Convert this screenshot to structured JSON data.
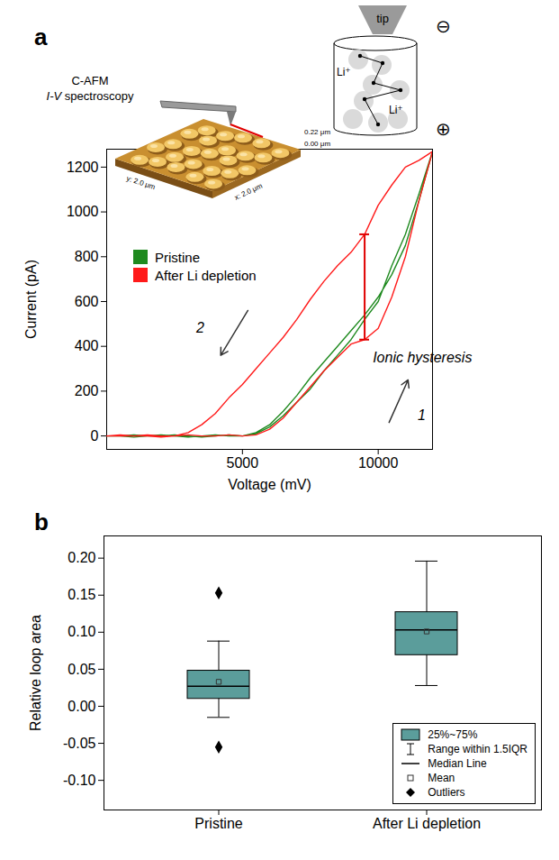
{
  "chart_data": [
    {
      "type": "line",
      "panel": "a",
      "x_label": "Voltage (mV)",
      "y_label": "Current (pA)",
      "xlim": [
        0,
        12000
      ],
      "xticks": [
        5000,
        10000
      ],
      "ylim": [
        -60,
        1280
      ],
      "yticks": [
        0,
        200,
        400,
        600,
        800,
        1000,
        1200
      ],
      "grid": false,
      "legend": "middle-left",
      "x": [
        0,
        500,
        1000,
        1500,
        2000,
        2500,
        3000,
        3500,
        4000,
        4500,
        5000,
        5500,
        6000,
        6500,
        7000,
        7500,
        8000,
        8500,
        9000,
        9500,
        10000,
        10500,
        11000,
        11500,
        12000,
        11500,
        11000,
        10500,
        10000,
        9500,
        9000,
        8500,
        8000,
        7500,
        7000,
        6500,
        6000,
        5500,
        5000,
        4500,
        4000,
        3500,
        3000,
        2500,
        2000,
        1500,
        1000,
        500,
        0
      ],
      "series": [
        {
          "name": "Pristine",
          "color": "#1f8a1f",
          "values": [
            0,
            0,
            -5,
            0,
            5,
            0,
            -5,
            0,
            5,
            0,
            0,
            10,
            40,
            90,
            150,
            210,
            290,
            360,
            430,
            520,
            600,
            760,
            900,
            1080,
            1270,
            1050,
            850,
            720,
            620,
            540,
            470,
            400,
            330,
            260,
            180,
            110,
            50,
            15,
            0,
            5,
            0,
            -5,
            0,
            5,
            0,
            0,
            5,
            0,
            0
          ]
        },
        {
          "name": "After Li depletion",
          "color": "#ff1a1a",
          "values": [
            0,
            5,
            0,
            0,
            -5,
            0,
            5,
            0,
            0,
            5,
            0,
            5,
            30,
            80,
            150,
            220,
            290,
            350,
            410,
            430,
            480,
            620,
            800,
            1050,
            1270,
            1230,
            1200,
            1120,
            1030,
            900,
            820,
            760,
            690,
            610,
            520,
            440,
            370,
            300,
            230,
            170,
            100,
            50,
            15,
            0,
            0,
            5,
            0,
            0,
            0
          ]
        }
      ],
      "annotations": [
        {
          "text": "Ionic hysteresis",
          "x": 9800,
          "y": 350,
          "bar": {
            "x": 9500,
            "y1": 430,
            "y2": 900
          }
        },
        {
          "text": "1",
          "x": 11450,
          "y": 90,
          "arrow": {
            "x1": 10400,
            "y1": 60,
            "x2": 11100,
            "y2": 250
          }
        },
        {
          "text": "2",
          "x": 3300,
          "y": 480,
          "arrow": {
            "x1": 5200,
            "y1": 560,
            "x2": 4200,
            "y2": 360
          }
        }
      ],
      "insets": {
        "afm": {
          "title": "C-AFM",
          "subtitle": "I-V spectroscopy",
          "z_max": "0.22 μm",
          "z_min": "0.00 μm",
          "y_axis": "y: 2.0 μm",
          "x_axis": "x: 2.0 μm"
        },
        "tip_diagram": {
          "tip": "tip",
          "ions": [
            "Li⁺",
            "Li⁺"
          ],
          "minus": "⊖",
          "plus": "⊕"
        }
      }
    },
    {
      "type": "box",
      "panel": "b",
      "y_label": "Relative loop area",
      "categories": [
        "Pristine",
        "After Li depletion"
      ],
      "color": "#5b9d9b",
      "ylim": [
        -0.14,
        0.23
      ],
      "yticks": [
        {
          "value": -0.1,
          "label": "-0.10"
        },
        -0.05,
        {
          "value": 0,
          "label": "0.00"
        },
        0.05,
        {
          "value": 0.1,
          "label": "0.10"
        },
        0.15,
        {
          "value": 0.2,
          "label": "0.20"
        }
      ],
      "boxes": [
        {
          "q1": 0.01,
          "median": 0.027,
          "q3": 0.048,
          "mean": 0.033,
          "whisker_low": -0.015,
          "whisker_high": 0.088,
          "outliers": [
            0.153,
            -0.055
          ]
        },
        {
          "q1": 0.069,
          "median": 0.103,
          "q3": 0.127,
          "mean": 0.101,
          "whisker_low": 0.028,
          "whisker_high": 0.196,
          "outliers": []
        }
      ],
      "grid": false,
      "legend": "bottom-right",
      "legend_entries": [
        "25%~75%",
        "Range within 1.5IQR",
        "Median Line",
        "Mean",
        "Outliers"
      ]
    }
  ]
}
